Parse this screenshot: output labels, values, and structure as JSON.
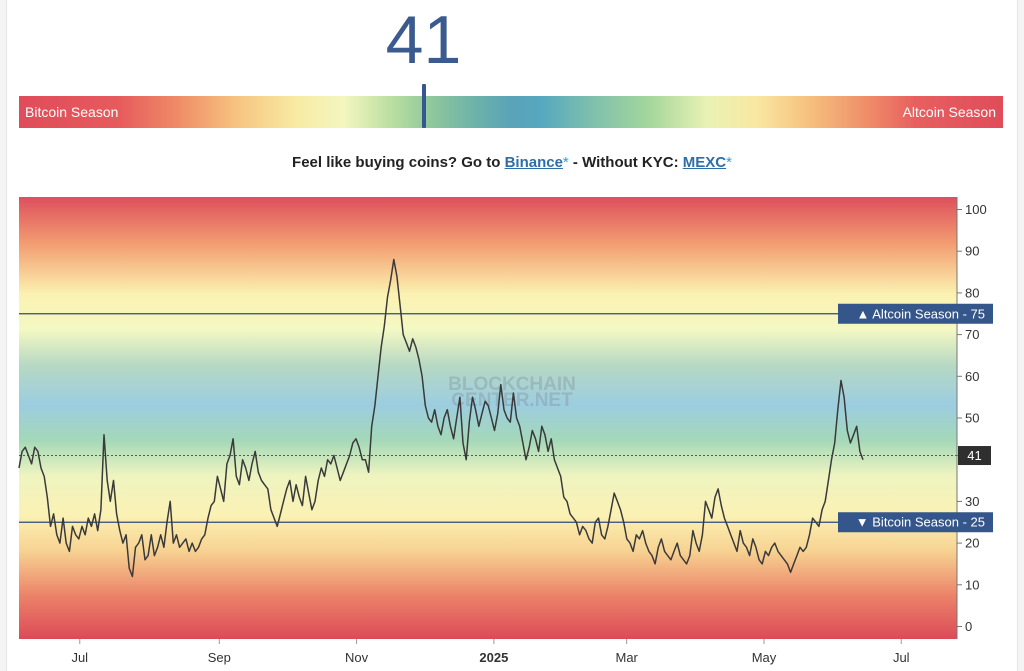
{
  "index": {
    "value": "41"
  },
  "gauge": {
    "left_label": "Bitcoin Season",
    "right_label": "Altcoin Season",
    "marker_value": 41
  },
  "promo": {
    "prefix": "Feel like buying coins? Go to ",
    "link1": "Binance",
    "star1": "*",
    "middle": " - Without KYC: ",
    "link2": "MEXC",
    "star2": "*"
  },
  "watermark": {
    "line1": "BLOCKCHAIN",
    "line2": "CENTER.NET"
  },
  "colors": {
    "line": "#3a3a3a",
    "threshold": "#2c4a7a",
    "tag_bg": "#34568a",
    "band_top": "#e0505c",
    "band_mid": "#56a2bb",
    "band_yellow": "#fbf7b8"
  },
  "chart_data": {
    "type": "line",
    "ylim": [
      -3,
      103
    ],
    "xlim": [
      0,
      375
    ],
    "yticks": [
      "100",
      "90",
      "80",
      "75",
      "70",
      "60",
      "50",
      "41",
      "30",
      "25",
      "20",
      "10",
      "0"
    ],
    "xticks": [
      {
        "label": "Jul",
        "x": 27
      },
      {
        "label": "Sep",
        "x": 89
      },
      {
        "label": "Nov",
        "x": 150
      },
      {
        "label": "2025",
        "x": 211,
        "bold": true
      },
      {
        "label": "Mar",
        "x": 270
      },
      {
        "label": "May",
        "x": 331
      },
      {
        "label": "Jul",
        "x": 392
      }
    ],
    "thresholds": [
      {
        "label": "▲ Altcoin Season",
        "value": 75
      },
      {
        "label": "▼ Bitcoin Season",
        "value": 25
      }
    ],
    "current": {
      "value": 41,
      "label": "41"
    },
    "series": [
      {
        "values": [
          38,
          42,
          43,
          41,
          39,
          43,
          42,
          38,
          36,
          31,
          24,
          27,
          22,
          20,
          26,
          20,
          18,
          24,
          22,
          21,
          24,
          22,
          26,
          24,
          27,
          23,
          28,
          46,
          35,
          30,
          35,
          27,
          23,
          20,
          22,
          14,
          12,
          19,
          20,
          22,
          16,
          17,
          22,
          17,
          19,
          22,
          19,
          25,
          30,
          20,
          22,
          19,
          20,
          21,
          18,
          20,
          18,
          19,
          21,
          22,
          26,
          29,
          30,
          36,
          33,
          30,
          39,
          41,
          45,
          36,
          34,
          40,
          38,
          35,
          39,
          42,
          37,
          35,
          34,
          33,
          28,
          26,
          24,
          27,
          30,
          33,
          35,
          30,
          34,
          31,
          29,
          36,
          32,
          28,
          30,
          35,
          38,
          36,
          40,
          39,
          41,
          38,
          35,
          37,
          39,
          41,
          44,
          45,
          43,
          40,
          40,
          37,
          48,
          53,
          60,
          67,
          72,
          79,
          83,
          88,
          84,
          77,
          70,
          68,
          66,
          69,
          67,
          64,
          60,
          53,
          50,
          49,
          52,
          48,
          46,
          50,
          52,
          48,
          45,
          50,
          55,
          44,
          40,
          49,
          55,
          52,
          48,
          51,
          54,
          53,
          50,
          47,
          51,
          58,
          52,
          50,
          49,
          56,
          50,
          48,
          44,
          40,
          43,
          47,
          45,
          42,
          48,
          46,
          42,
          45,
          40,
          38,
          36,
          31,
          30,
          27,
          26,
          25,
          22,
          24,
          23,
          21,
          20,
          25,
          26,
          22,
          21,
          24,
          28,
          32,
          30,
          28,
          25,
          21,
          20,
          18,
          22,
          21,
          23,
          20,
          18,
          17,
          15,
          19,
          21,
          18,
          17,
          16,
          18,
          20,
          17,
          16,
          15,
          17,
          23,
          20,
          18,
          22,
          30,
          28,
          26,
          31,
          33,
          29,
          26,
          24,
          22,
          20,
          18,
          23,
          20,
          19,
          17,
          21,
          19,
          16,
          15,
          18,
          17,
          19,
          20,
          18,
          17,
          16,
          15,
          13,
          15,
          17,
          19,
          18,
          19,
          22,
          26,
          25,
          24,
          28,
          30,
          35,
          40,
          44,
          52,
          59,
          55,
          47,
          44,
          46,
          48,
          42,
          40
        ]
      }
    ]
  }
}
